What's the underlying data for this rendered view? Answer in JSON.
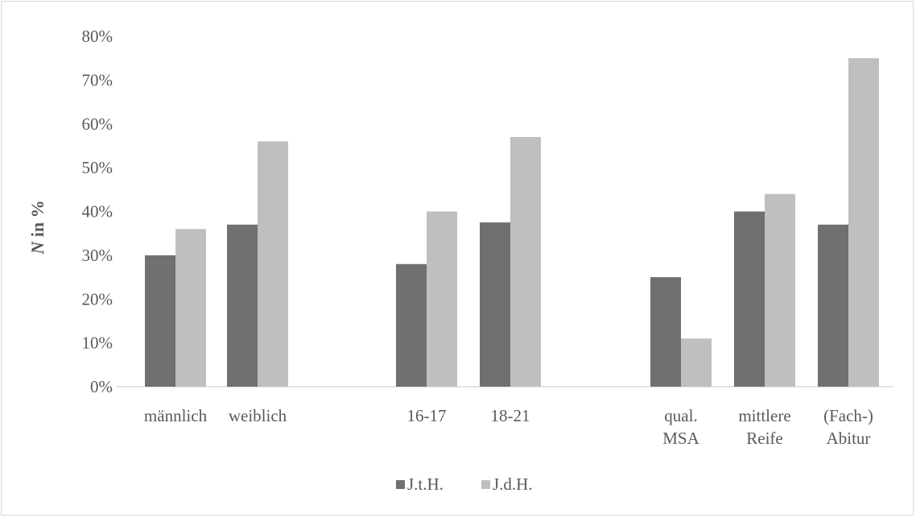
{
  "chart_data": {
    "type": "bar",
    "ylabel_italic": "N",
    "ylabel_rest": " in %",
    "ylim": [
      0,
      80
    ],
    "yticks": [
      0,
      10,
      20,
      30,
      40,
      50,
      60,
      70,
      80
    ],
    "ytick_suffix": "%",
    "grid": false,
    "legend_position": "bottom",
    "categories": [
      [
        "männlich"
      ],
      [
        "weiblich"
      ],
      [
        "16-17"
      ],
      [
        "18-21"
      ],
      [
        "qual.",
        "MSA"
      ],
      [
        "mittlere",
        "Reife"
      ],
      [
        "(Fach-)",
        "Abitur"
      ]
    ],
    "groups": [
      [
        0,
        1
      ],
      [
        2,
        3
      ],
      [
        4,
        5,
        6
      ]
    ],
    "series": [
      {
        "name": "J.t.H.",
        "color": "#707070",
        "values": [
          30,
          37,
          28,
          37.5,
          25,
          40,
          37
        ]
      },
      {
        "name": "J.d.H.",
        "color": "#bfbfbf",
        "values": [
          36,
          56,
          40,
          57,
          11,
          44,
          75
        ]
      }
    ]
  }
}
